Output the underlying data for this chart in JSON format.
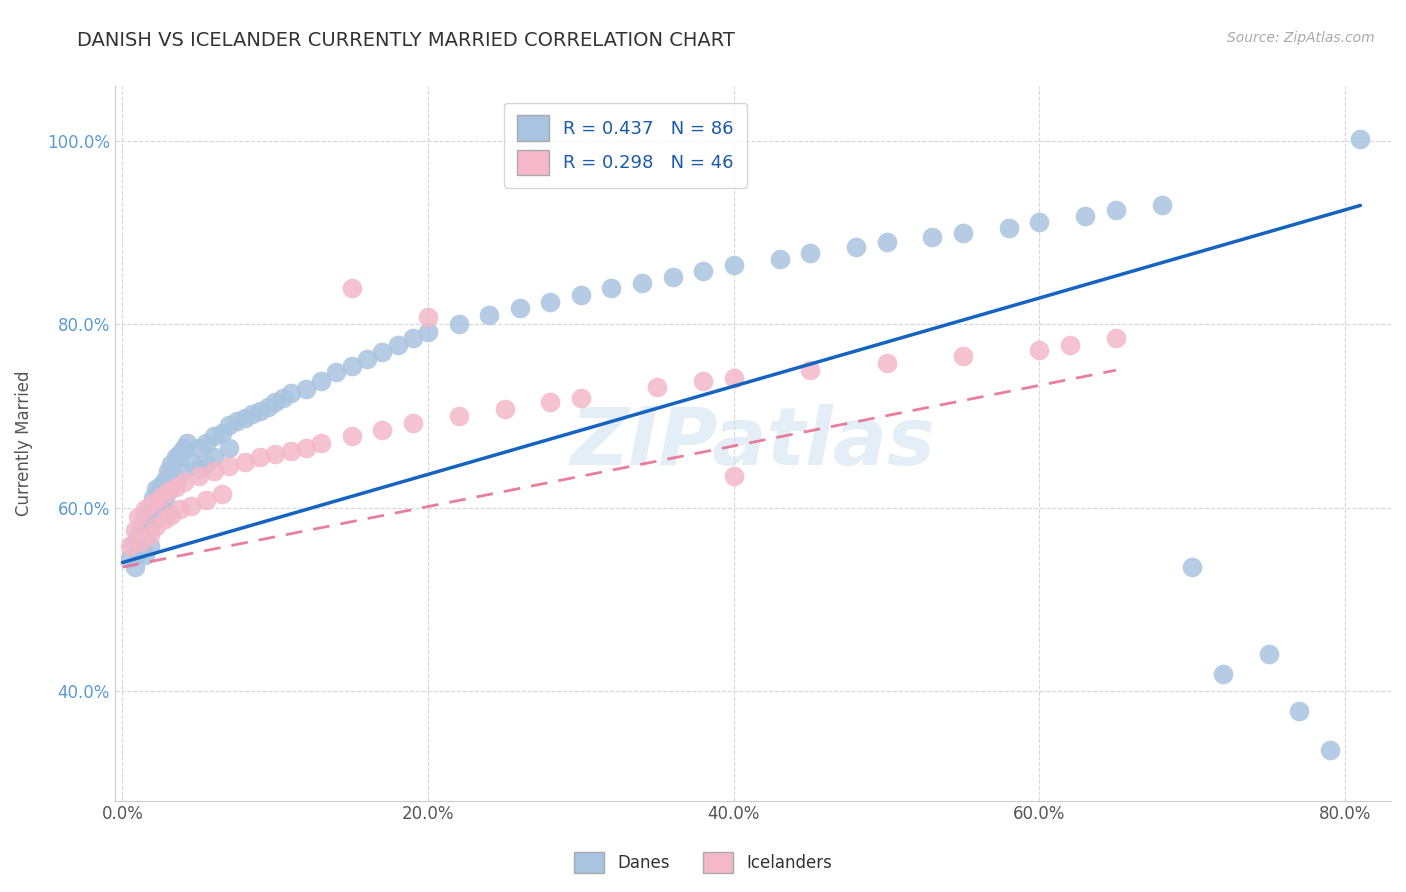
{
  "title": "DANISH VS ICELANDER CURRENTLY MARRIED CORRELATION CHART",
  "source": "Source: ZipAtlas.com",
  "ylabel": "Currently Married",
  "xlabel_ticks": [
    "0.0%",
    "20.0%",
    "40.0%",
    "60.0%",
    "80.0%"
  ],
  "xlabel_vals": [
    0.0,
    0.2,
    0.4,
    0.6,
    0.8
  ],
  "ylabel_ticks": [
    "40.0%",
    "60.0%",
    "80.0%",
    "100.0%"
  ],
  "ylabel_vals": [
    0.4,
    0.6,
    0.8,
    1.0
  ],
  "xlim": [
    -0.005,
    0.83
  ],
  "ylim": [
    0.28,
    1.06
  ],
  "danes_color": "#a8c4e0",
  "icelanders_color": "#f4b8c8",
  "danes_line_color": "#1565c0",
  "icelanders_line_color": "#e87090",
  "background_color": "#ffffff",
  "grid_color": "#cccccc",
  "watermark": "ZIPatlas",
  "legend_label_danes": "R = 0.437   N = 86",
  "legend_label_icelanders": "R = 0.298   N = 46",
  "danes_x": [
    0.005,
    0.007,
    0.008,
    0.01,
    0.01,
    0.012,
    0.012,
    0.015,
    0.015,
    0.015,
    0.018,
    0.018,
    0.018,
    0.02,
    0.02,
    0.022,
    0.022,
    0.025,
    0.025,
    0.028,
    0.028,
    0.03,
    0.03,
    0.03,
    0.032,
    0.032,
    0.035,
    0.035,
    0.038,
    0.04,
    0.04,
    0.042,
    0.045,
    0.05,
    0.05,
    0.055,
    0.055,
    0.06,
    0.06,
    0.065,
    0.07,
    0.07,
    0.075,
    0.08,
    0.085,
    0.09,
    0.095,
    0.1,
    0.105,
    0.11,
    0.12,
    0.13,
    0.14,
    0.15,
    0.16,
    0.17,
    0.18,
    0.19,
    0.2,
    0.22,
    0.24,
    0.26,
    0.28,
    0.3,
    0.32,
    0.34,
    0.36,
    0.38,
    0.4,
    0.43,
    0.45,
    0.48,
    0.5,
    0.53,
    0.55,
    0.58,
    0.6,
    0.63,
    0.65,
    0.68,
    0.7,
    0.72,
    0.75,
    0.77,
    0.79,
    0.81
  ],
  "danes_y": [
    0.545,
    0.56,
    0.535,
    0.57,
    0.55,
    0.58,
    0.558,
    0.59,
    0.568,
    0.548,
    0.6,
    0.578,
    0.558,
    0.61,
    0.588,
    0.62,
    0.598,
    0.625,
    0.602,
    0.63,
    0.608,
    0.64,
    0.618,
    0.595,
    0.648,
    0.625,
    0.655,
    0.632,
    0.66,
    0.665,
    0.64,
    0.67,
    0.65,
    0.665,
    0.642,
    0.67,
    0.648,
    0.678,
    0.655,
    0.682,
    0.69,
    0.665,
    0.695,
    0.698,
    0.702,
    0.705,
    0.71,
    0.715,
    0.72,
    0.725,
    0.73,
    0.738,
    0.748,
    0.755,
    0.762,
    0.77,
    0.778,
    0.785,
    0.792,
    0.8,
    0.81,
    0.818,
    0.825,
    0.832,
    0.84,
    0.845,
    0.852,
    0.858,
    0.865,
    0.872,
    0.878,
    0.885,
    0.89,
    0.895,
    0.9,
    0.905,
    0.912,
    0.918,
    0.925,
    0.93,
    0.535,
    0.418,
    0.44,
    0.378,
    0.335,
    1.002
  ],
  "icelanders_x": [
    0.005,
    0.008,
    0.01,
    0.012,
    0.015,
    0.018,
    0.02,
    0.022,
    0.025,
    0.028,
    0.03,
    0.032,
    0.035,
    0.038,
    0.04,
    0.045,
    0.05,
    0.055,
    0.06,
    0.065,
    0.07,
    0.08,
    0.09,
    0.1,
    0.11,
    0.12,
    0.13,
    0.15,
    0.17,
    0.19,
    0.22,
    0.25,
    0.28,
    0.3,
    0.35,
    0.38,
    0.4,
    0.45,
    0.5,
    0.55,
    0.6,
    0.62,
    0.65,
    0.15,
    0.2,
    0.4
  ],
  "icelanders_y": [
    0.558,
    0.575,
    0.59,
    0.562,
    0.598,
    0.57,
    0.605,
    0.58,
    0.612,
    0.588,
    0.618,
    0.592,
    0.622,
    0.598,
    0.628,
    0.602,
    0.635,
    0.608,
    0.64,
    0.615,
    0.645,
    0.65,
    0.655,
    0.658,
    0.662,
    0.665,
    0.67,
    0.678,
    0.685,
    0.692,
    0.7,
    0.708,
    0.715,
    0.72,
    0.732,
    0.738,
    0.742,
    0.75,
    0.758,
    0.765,
    0.772,
    0.778,
    0.785,
    0.84,
    0.808,
    0.635
  ],
  "danes_line_x": [
    0.0,
    0.81
  ],
  "danes_line_y": [
    0.54,
    0.93
  ],
  "icelanders_line_x": [
    0.0,
    0.65
  ],
  "icelanders_line_y": [
    0.535,
    0.75
  ]
}
